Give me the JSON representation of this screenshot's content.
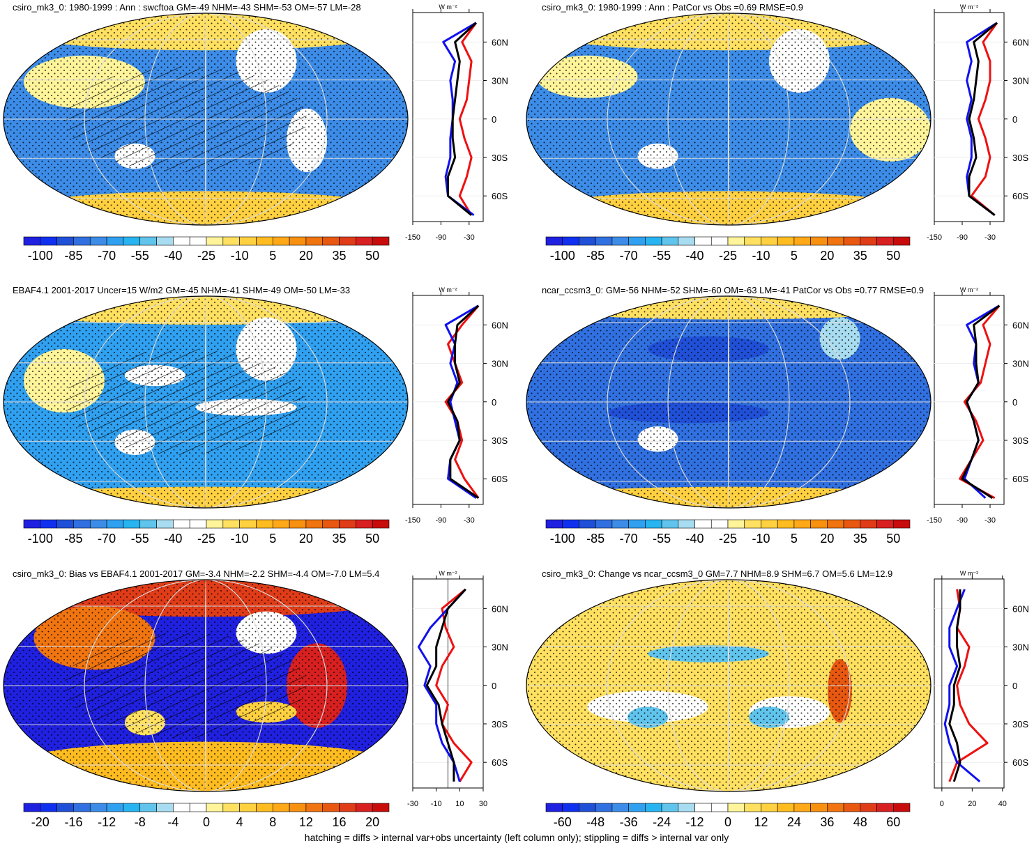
{
  "chart_data": [
    {
      "type": "line",
      "title": "csiro_mk3_0: 1980-1999 : Ann : swcftoa GM=-49 NHM=-43 SHM=-53 OM=-57 LM=-28",
      "colorbar_labels": [
        -100,
        -85,
        -70,
        -55,
        -40,
        -25,
        -10,
        5,
        20,
        35,
        50
      ],
      "units": "W m⁻²",
      "y": [
        75,
        60,
        45,
        30,
        15,
        0,
        -15,
        -30,
        -45,
        -60,
        -75
      ],
      "series": [
        {
          "color": "#ee1111",
          "values": [
            -15,
            -45,
            -25,
            -30,
            -35,
            -50,
            -40,
            -25,
            -35,
            -50,
            -25
          ]
        },
        {
          "color": "#1111ee",
          "values": [
            -15,
            -85,
            -60,
            -70,
            -65,
            -65,
            -70,
            -70,
            -80,
            -75,
            -20
          ]
        },
        {
          "color": "#000000",
          "values": [
            -15,
            -60,
            -50,
            -55,
            -60,
            -65,
            -65,
            -60,
            -75,
            -75,
            -25
          ]
        }
      ],
      "xlim": [
        -150,
        0
      ],
      "xticks": [
        -150,
        -90,
        -30
      ],
      "ylim": [
        -80,
        83
      ],
      "yticks": [
        {
          "value": 60,
          "label": "60N"
        },
        {
          "value": 30,
          "label": "30N"
        },
        0,
        {
          "value": -30,
          "label": "30S"
        },
        {
          "value": -60,
          "label": "60S"
        }
      ]
    },
    {
      "type": "line",
      "title": "csiro_mk3_0: 1980-1999 : Ann : PatCor vs Obs =0.69 RMSE=0.9",
      "colorbar_labels": [
        -100,
        -85,
        -70,
        -55,
        -40,
        -25,
        -10,
        5,
        20,
        35,
        50
      ],
      "units": "W m⁻²",
      "y": [
        75,
        60,
        45,
        30,
        15,
        0,
        -15,
        -30,
        -45,
        -60,
        -75
      ],
      "series": [
        {
          "color": "#ee1111",
          "values": [
            -15,
            -45,
            -30,
            -30,
            -40,
            -55,
            -40,
            -30,
            -40,
            -70,
            -20
          ]
        },
        {
          "color": "#1111ee",
          "values": [
            -15,
            -80,
            -70,
            -80,
            -70,
            -80,
            -70,
            -70,
            -80,
            -75,
            -20
          ]
        },
        {
          "color": "#000000",
          "values": [
            -15,
            -65,
            -55,
            -60,
            -65,
            -75,
            -65,
            -60,
            -75,
            -75,
            -20
          ]
        }
      ],
      "xlim": [
        -150,
        0
      ],
      "xticks": [
        -150,
        -90,
        -30
      ],
      "ylim": [
        -80,
        83
      ],
      "yticks": [
        {
          "value": 60,
          "label": "60N"
        },
        {
          "value": 30,
          "label": "30N"
        },
        0,
        {
          "value": -30,
          "label": "30S"
        },
        {
          "value": -60,
          "label": "60S"
        }
      ]
    },
    {
      "type": "line",
      "title": "EBAF4.1 2001-2017 Uncer=15 W/m2 GM=-45 NHM=-41 SHM=-49 OM=-50 LM=-33",
      "colorbar_labels": [
        -100,
        -85,
        -70,
        -55,
        -40,
        -25,
        -10,
        5,
        20,
        35,
        50
      ],
      "units": "W m⁻²",
      "y": [
        75,
        60,
        45,
        30,
        15,
        0,
        -15,
        -30,
        -45,
        -60,
        -75
      ],
      "series": [
        {
          "color": "#ee1111",
          "values": [
            -10,
            -45,
            -75,
            -60,
            -45,
            -80,
            -55,
            -45,
            -60,
            -40,
            -10
          ]
        },
        {
          "color": "#1111ee",
          "values": [
            -10,
            -80,
            -60,
            -70,
            -55,
            -70,
            -60,
            -50,
            -70,
            -75,
            -15
          ]
        },
        {
          "color": "#000000",
          "values": [
            -10,
            -55,
            -60,
            -60,
            -50,
            -75,
            -55,
            -50,
            -70,
            -70,
            -10
          ]
        }
      ],
      "xlim": [
        -150,
        0
      ],
      "xticks": [
        -150,
        -90,
        -30
      ],
      "ylim": [
        -80,
        83
      ],
      "yticks": [
        {
          "value": 60,
          "label": "60N"
        },
        {
          "value": 30,
          "label": "30N"
        },
        0,
        {
          "value": -30,
          "label": "30S"
        },
        {
          "value": -60,
          "label": "60S"
        }
      ]
    },
    {
      "type": "line",
      "title": "ncar_ccsm3_0: GM=-56 NHM=-52 SHM=-60 OM=-63 LM=-41 PatCor vs Obs =0.77 RMSE=0.9",
      "colorbar_labels": [
        -100,
        -85,
        -70,
        -55,
        -40,
        -25,
        -10,
        5,
        20,
        35,
        50
      ],
      "units": "W m⁻²",
      "y": [
        75,
        60,
        45,
        30,
        15,
        0,
        -15,
        -30,
        -45,
        -60,
        -75
      ],
      "series": [
        {
          "color": "#ee1111",
          "values": [
            -10,
            -45,
            -30,
            -40,
            -50,
            -85,
            -60,
            -45,
            -70,
            -95,
            -20
          ]
        },
        {
          "color": "#1111ee",
          "values": [
            -10,
            -80,
            -60,
            -65,
            -55,
            -80,
            -65,
            -55,
            -70,
            -85,
            -40
          ]
        },
        {
          "color": "#000000",
          "values": [
            -10,
            -65,
            -60,
            -60,
            -55,
            -80,
            -65,
            -55,
            -70,
            -90,
            -25
          ]
        }
      ],
      "xlim": [
        -150,
        0
      ],
      "xticks": [
        -150,
        -90,
        -30
      ],
      "ylim": [
        -80,
        83
      ],
      "yticks": [
        {
          "value": 60,
          "label": "60N"
        },
        {
          "value": 30,
          "label": "30N"
        },
        0,
        {
          "value": -30,
          "label": "30S"
        },
        {
          "value": -60,
          "label": "60S"
        }
      ]
    },
    {
      "type": "line",
      "title": "csiro_mk3_0: Bias vs EBAF4.1 2001-2017 GM=-3.4 NHM=-2.2 SHM=-4.4 OM=-7.0 LM=5.4",
      "colorbar_labels": [
        -20,
        -16,
        -12,
        -8,
        -4,
        0,
        4,
        8,
        12,
        16,
        20
      ],
      "units": "W m⁻²",
      "y": [
        75,
        60,
        45,
        30,
        15,
        0,
        -15,
        -30,
        -45,
        -60,
        -75
      ],
      "series": [
        {
          "color": "#ee1111",
          "values": [
            15,
            -5,
            -2,
            5,
            -5,
            -10,
            0,
            -5,
            5,
            20,
            10
          ]
        },
        {
          "color": "#1111ee",
          "values": [
            15,
            0,
            -15,
            -25,
            -15,
            -20,
            -10,
            -10,
            -5,
            5,
            10
          ]
        },
        {
          "color": "#000000",
          "values": [
            15,
            0,
            -5,
            -10,
            -10,
            -18,
            -8,
            -5,
            0,
            5,
            5
          ]
        }
      ],
      "xlim": [
        -30,
        30
      ],
      "xticks": [
        -30,
        -10,
        10,
        30
      ],
      "ylim": [
        -80,
        83
      ],
      "yticks": [
        {
          "value": 60,
          "label": "60N"
        },
        {
          "value": 30,
          "label": "30N"
        },
        0,
        {
          "value": -30,
          "label": "30S"
        },
        {
          "value": -60,
          "label": "60S"
        }
      ]
    },
    {
      "type": "line",
      "title": "csiro_mk3_0: Change vs ncar_ccsm3_0 GM=7.7 NHM=8.9 SHM=6.7 OM=5.6 LM=12.9",
      "colorbar_labels": [
        -60,
        -48,
        -36,
        -24,
        -12,
        0,
        12,
        24,
        36,
        48,
        60
      ],
      "units": "W m⁻²",
      "y": [
        75,
        60,
        45,
        30,
        15,
        0,
        -15,
        -30,
        -45,
        -60,
        -75
      ],
      "series": [
        {
          "color": "#ee1111",
          "values": [
            10,
            12,
            10,
            18,
            15,
            10,
            12,
            18,
            30,
            10,
            5
          ]
        },
        {
          "color": "#1111ee",
          "values": [
            15,
            10,
            5,
            5,
            10,
            5,
            5,
            2,
            5,
            10,
            25
          ]
        },
        {
          "color": "#000000",
          "values": [
            12,
            12,
            10,
            10,
            12,
            8,
            8,
            5,
            10,
            12,
            8
          ]
        }
      ],
      "xlim": [
        -5,
        41
      ],
      "xticks": [
        0,
        20,
        40
      ],
      "ylim": [
        -80,
        83
      ],
      "yticks": [
        {
          "value": 60,
          "label": "60N"
        },
        {
          "value": 30,
          "label": "30N"
        },
        0,
        {
          "value": -30,
          "label": "30S"
        },
        {
          "value": -60,
          "label": "60S"
        }
      ]
    }
  ],
  "colorbar_colors": [
    "#2020e0",
    "#1030f0",
    "#2050d8",
    "#3070e0",
    "#3c8ce8",
    "#30a0f0",
    "#28b4f0",
    "#60c4ec",
    "#a8dcf0",
    "#ffffff",
    "#ffffff",
    "#fff49a",
    "#ffe060",
    "#ffd040",
    "#ffbc20",
    "#ffa818",
    "#f89010",
    "#f07410",
    "#e85810",
    "#e03c18",
    "#d82020",
    "#c80c0c"
  ],
  "footnote": "hatching = diffs > internal var+obs uncertainty (left column only); stippling = diffs > internal var only"
}
